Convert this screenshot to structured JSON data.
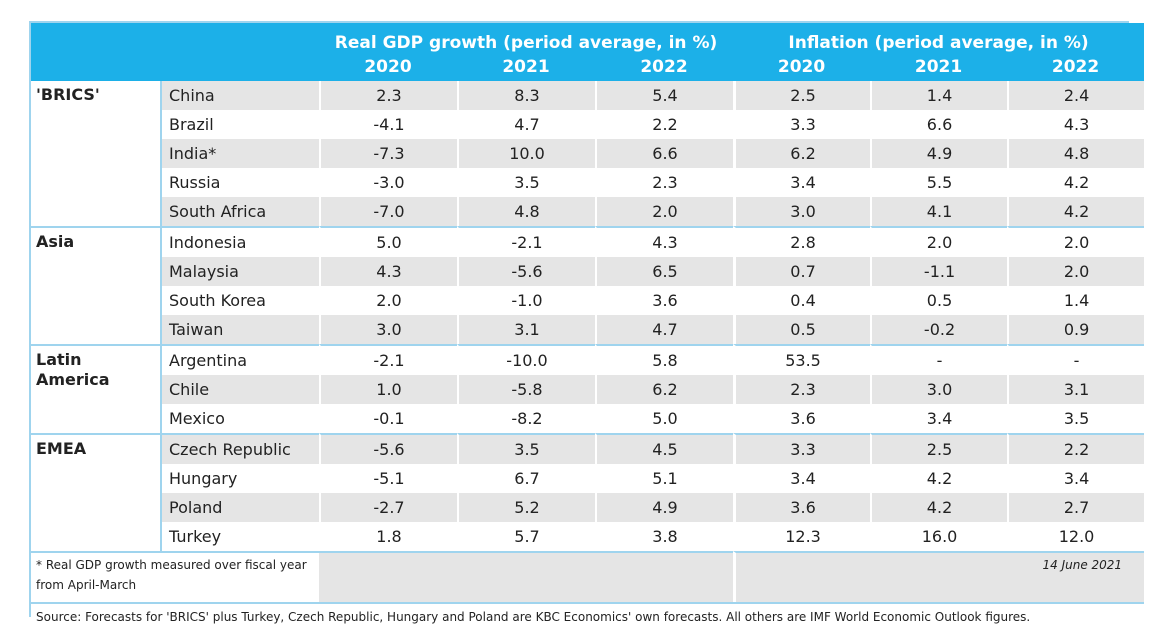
{
  "header": {
    "gdp_title": "Real GDP growth (period average, in %)",
    "inflation_title": "Inflation (period average, in %)",
    "years": [
      "2020",
      "2021",
      "2022",
      "2020",
      "2021",
      "2022"
    ]
  },
  "regions": [
    {
      "name": "'BRICS'",
      "rows": [
        {
          "country": "China",
          "values": [
            "2.3",
            "8.3",
            "5.4",
            "2.5",
            "1.4",
            "2.4"
          ]
        },
        {
          "country": "Brazil",
          "values": [
            "-4.1",
            "4.7",
            "2.2",
            "3.3",
            "6.6",
            "4.3"
          ]
        },
        {
          "country": "India*",
          "values": [
            "-7.3",
            "10.0",
            "6.6",
            "6.2",
            "4.9",
            "4.8"
          ]
        },
        {
          "country": "Russia",
          "values": [
            "-3.0",
            "3.5",
            "2.3",
            "3.4",
            "5.5",
            "4.2"
          ]
        },
        {
          "country": "South Africa",
          "values": [
            "-7.0",
            "4.8",
            "2.0",
            "3.0",
            "4.1",
            "4.2"
          ]
        }
      ]
    },
    {
      "name": "Asia",
      "rows": [
        {
          "country": "Indonesia",
          "values": [
            "5.0",
            "-2.1",
            "4.3",
            "2.8",
            "2.0",
            "2.0"
          ]
        },
        {
          "country": "Malaysia",
          "values": [
            "4.3",
            "-5.6",
            "6.5",
            "0.7",
            "-1.1",
            "2.0"
          ]
        },
        {
          "country": "South Korea",
          "values": [
            "2.0",
            "-1.0",
            "3.6",
            "0.4",
            "0.5",
            "1.4"
          ]
        },
        {
          "country": "Taiwan",
          "values": [
            "3.0",
            "3.1",
            "4.7",
            "0.5",
            "-0.2",
            "0.9"
          ]
        }
      ]
    },
    {
      "name": "Latin America",
      "rows": [
        {
          "country": "Argentina",
          "values": [
            "-2.1",
            "-10.0",
            "5.8",
            "53.5",
            "-",
            "-"
          ]
        },
        {
          "country": "Chile",
          "values": [
            "1.0",
            "-5.8",
            "6.2",
            "2.3",
            "3.0",
            "3.1"
          ]
        },
        {
          "country": "Mexico",
          "values": [
            "-0.1",
            "-8.2",
            "5.0",
            "3.6",
            "3.4",
            "3.5"
          ]
        }
      ]
    },
    {
      "name": "EMEA",
      "rows": [
        {
          "country": "Czech Republic",
          "values": [
            "-5.6",
            "3.5",
            "4.5",
            "3.3",
            "2.5",
            "2.2"
          ]
        },
        {
          "country": "Hungary",
          "values": [
            "-5.1",
            "6.7",
            "5.1",
            "3.4",
            "4.2",
            "3.4"
          ]
        },
        {
          "country": "Poland",
          "values": [
            "-2.7",
            "5.2",
            "4.9",
            "3.6",
            "4.2",
            "2.7"
          ]
        },
        {
          "country": "Turkey",
          "values": [
            "1.8",
            "5.7",
            "3.8",
            "12.3",
            "16.0",
            "12.0"
          ]
        }
      ]
    }
  ],
  "footnote": "* Real GDP growth measured over fiscal year from April-March",
  "date": "14 June 2021",
  "source": "Source: Forecasts for 'BRICS' plus Turkey, Czech Republic, Hungary and Poland are KBC Economics' own forecasts. All others are IMF World Economic Outlook figures."
}
